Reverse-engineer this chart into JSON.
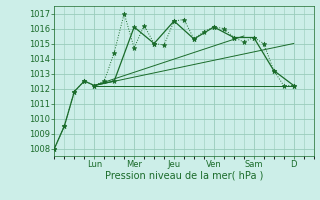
{
  "background_color": "#cceee8",
  "plot_bg_color": "#cceee8",
  "grid_color": "#99ccbb",
  "line_color": "#1a6b2a",
  "ylim": [
    1007.5,
    1017.5
  ],
  "yticks": [
    1008,
    1009,
    1010,
    1011,
    1012,
    1013,
    1014,
    1015,
    1016,
    1017
  ],
  "xlabel": "Pression niveau de la mer( hPa )",
  "xlabel_fontsize": 7,
  "tick_fontsize": 6,
  "day_labels": [
    "Lun",
    "Mer",
    "Jeu",
    "Ven",
    "Sam",
    "D"
  ],
  "day_positions": [
    2,
    4,
    6,
    8,
    10,
    12
  ],
  "xlim": [
    0,
    13
  ],
  "series1_x": [
    0,
    0.5,
    1,
    1.5,
    2,
    2.5,
    3,
    3.5,
    4,
    4.5,
    5,
    5.5,
    6,
    6.5,
    7,
    7.5,
    8,
    8.5,
    9,
    9.5,
    10,
    10.5,
    11,
    11.5,
    12
  ],
  "series1_y": [
    1008.0,
    1009.5,
    1011.8,
    1012.5,
    1012.2,
    1012.5,
    1014.4,
    1017.0,
    1014.7,
    1016.2,
    1015.0,
    1014.9,
    1016.5,
    1016.6,
    1015.3,
    1015.8,
    1016.1,
    1016.0,
    1015.4,
    1015.1,
    1015.4,
    1015.0,
    1013.2,
    1012.2,
    1012.2
  ],
  "series2_x": [
    0,
    0.5,
    1,
    1.5,
    2,
    3,
    4,
    5,
    6,
    7,
    8,
    9,
    10,
    11,
    12
  ],
  "series2_y": [
    1008.0,
    1009.5,
    1011.8,
    1012.5,
    1012.2,
    1012.5,
    1016.1,
    1015.0,
    1016.5,
    1015.3,
    1016.1,
    1015.4,
    1015.4,
    1013.2,
    1012.2
  ],
  "line1_x": [
    2,
    12
  ],
  "line1_y": [
    1012.2,
    1012.2
  ],
  "line2_x": [
    2,
    9.5
  ],
  "line2_y": [
    1012.2,
    1015.5
  ],
  "line3_x": [
    2,
    12
  ],
  "line3_y": [
    1012.2,
    1015.0
  ]
}
